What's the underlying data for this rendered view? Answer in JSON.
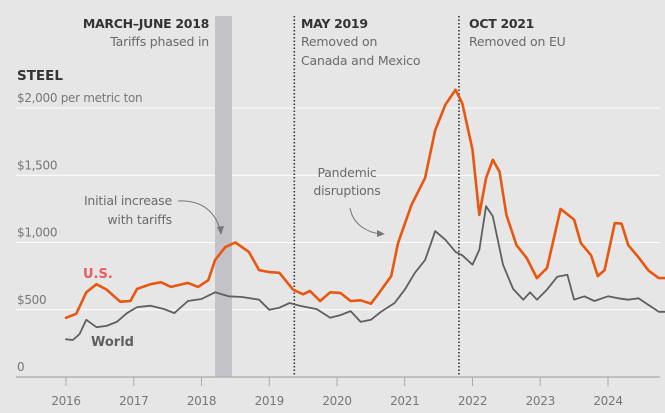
{
  "chart_data": {
    "type": "line",
    "title": "STEEL",
    "ylabel": "$2,000 per metric ton",
    "xlabel": "",
    "xlim": [
      2015.6,
      2025.0
    ],
    "ylim": [
      0,
      2000
    ],
    "grid": true,
    "x_ticks": [
      "2016",
      "2017",
      "2018",
      "2019",
      "2020",
      "2021",
      "2022",
      "2023",
      "2024"
    ],
    "x_tick_values": [
      2016,
      2017,
      2018,
      2019,
      2020,
      2021,
      2022,
      2023,
      2024
    ],
    "y_ticks": [
      "0",
      "$500",
      "$1,000",
      "$1,500",
      "$2,000 per metric ton"
    ],
    "y_tick_values": [
      0,
      500,
      1000,
      1500,
      2000
    ],
    "colors": {
      "us_line": "#e8560f",
      "us_label": "#ec5b5f",
      "world": "#5f5f5f",
      "band": "#c3c3c7",
      "grid": "#ffffff",
      "axis": "#aaaaaa"
    },
    "series": [
      {
        "name": "U.S.",
        "x": [
          2016.0,
          2016.15,
          2016.3,
          2016.45,
          2016.6,
          2016.8,
          2016.95,
          2017.05,
          2017.25,
          2017.4,
          2017.55,
          2017.8,
          2017.95,
          2018.1,
          2018.2,
          2018.35,
          2018.5,
          2018.7,
          2018.85,
          2019.0,
          2019.15,
          2019.35,
          2019.5,
          2019.6,
          2019.75,
          2019.9,
          2020.05,
          2020.2,
          2020.35,
          2020.5,
          2020.6,
          2020.8,
          2020.9,
          2021.1,
          2021.3,
          2021.45,
          2021.6,
          2021.75,
          2021.85,
          2022.0,
          2022.1,
          2022.2,
          2022.3,
          2022.4,
          2022.5,
          2022.65,
          2022.8,
          2022.95,
          2023.1,
          2023.3,
          2023.5,
          2023.6,
          2023.75,
          2023.85,
          2023.95,
          2024.1,
          2024.2,
          2024.3,
          2024.45,
          2024.6,
          2024.75,
          2024.85,
          2024.95
        ],
        "values": [
          440,
          470,
          630,
          690,
          650,
          560,
          565,
          655,
          690,
          705,
          670,
          700,
          670,
          720,
          870,
          965,
          1000,
          930,
          795,
          780,
          775,
          650,
          615,
          640,
          565,
          630,
          625,
          565,
          570,
          545,
          610,
          750,
          995,
          1280,
          1480,
          1835,
          2025,
          2135,
          2035,
          1690,
          1205,
          1480,
          1615,
          1525,
          1205,
          980,
          885,
          735,
          810,
          1250,
          1170,
          995,
          905,
          750,
          795,
          1145,
          1140,
          980,
          890,
          790,
          735,
          735,
          765
        ]
      },
      {
        "name": "World",
        "x": [
          2016.0,
          2016.1,
          2016.2,
          2016.3,
          2016.45,
          2016.6,
          2016.75,
          2016.9,
          2017.05,
          2017.25,
          2017.45,
          2017.6,
          2017.8,
          2018.0,
          2018.2,
          2018.4,
          2018.6,
          2018.85,
          2019.0,
          2019.15,
          2019.3,
          2019.45,
          2019.7,
          2019.9,
          2020.05,
          2020.2,
          2020.35,
          2020.5,
          2020.65,
          2020.85,
          2021.0,
          2021.15,
          2021.3,
          2021.45,
          2021.6,
          2021.75,
          2021.85,
          2022.0,
          2022.1,
          2022.2,
          2022.3,
          2022.45,
          2022.6,
          2022.75,
          2022.85,
          2022.95,
          2023.1,
          2023.25,
          2023.4,
          2023.5,
          2023.65,
          2023.8,
          2024.0,
          2024.15,
          2024.3,
          2024.45,
          2024.6,
          2024.75,
          2024.85
        ],
        "values": [
          280,
          275,
          320,
          425,
          370,
          380,
          410,
          475,
          520,
          530,
          505,
          475,
          565,
          580,
          630,
          600,
          595,
          575,
          500,
          515,
          550,
          530,
          505,
          440,
          460,
          490,
          410,
          425,
          485,
          550,
          650,
          775,
          870,
          1085,
          1020,
          930,
          905,
          835,
          945,
          1270,
          1195,
          835,
          655,
          575,
          630,
          575,
          650,
          745,
          760,
          575,
          600,
          565,
          600,
          585,
          575,
          585,
          535,
          485,
          485
        ]
      }
    ],
    "shaded_periods": [
      {
        "start": 2018.2,
        "end": 2018.45,
        "title": "MARCH–JUNE 2018",
        "text": [
          "Tariffs phased in"
        ]
      }
    ],
    "event_lines": [
      {
        "x": 2019.37,
        "title": "MAY 2019",
        "text": [
          "Removed on",
          "Canada and Mexico"
        ]
      },
      {
        "x": 2021.8,
        "title": "OCT 2021",
        "text": [
          "Removed on EU"
        ]
      }
    ],
    "annotations": [
      {
        "text": [
          "Initial increase",
          "with tariffs"
        ]
      },
      {
        "text": [
          "Pandemic",
          "disruptions"
        ]
      }
    ],
    "series_labels": {
      "us": "U.S.",
      "world": "World"
    }
  }
}
